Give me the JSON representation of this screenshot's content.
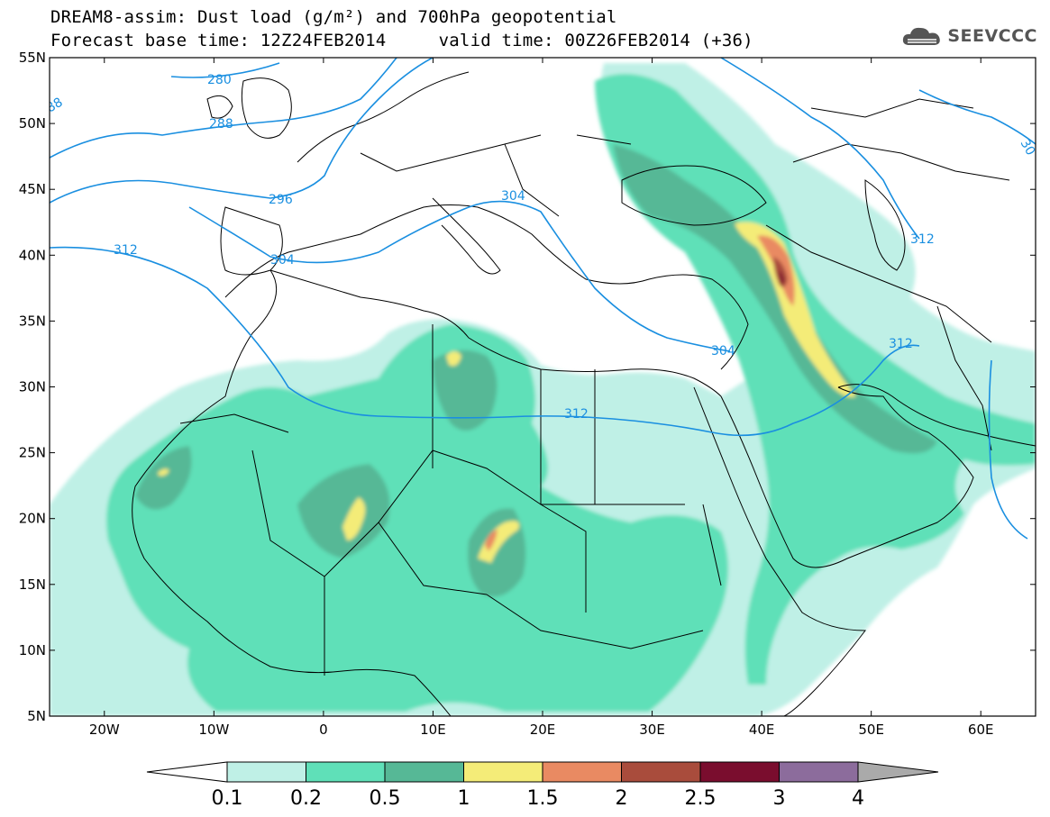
{
  "title": {
    "line1": "DREAM8-assim: Dust load (g/m²) and 700hPa geopotential",
    "line2_left": "Forecast base time: 12Z24FEB2014",
    "line2_right": "valid time: 00Z26FEB2014 (+36)"
  },
  "logo": {
    "text": "SEEVCCC",
    "icon": "cloud-logo-icon"
  },
  "map": {
    "lon_range": [
      -25,
      65
    ],
    "lat_range": [
      5,
      55
    ],
    "lat_ticks": [
      "55N",
      "50N",
      "45N",
      "40N",
      "35N",
      "30N",
      "25N",
      "20N",
      "15N",
      "10N",
      "5N"
    ],
    "lon_ticks": [
      "20W",
      "10W",
      "0",
      "10E",
      "20E",
      "30E",
      "40E",
      "50E",
      "60E"
    ],
    "contour_labels": [
      "280",
      "288",
      "88",
      "296",
      "304",
      "312",
      "304",
      "304",
      "312",
      "312",
      "312",
      "304",
      "30"
    ]
  },
  "colorbar": {
    "labels": [
      "0.1",
      "0.2",
      "0.5",
      "1",
      "1.5",
      "2",
      "2.5",
      "3",
      "4"
    ],
    "colors": [
      "#ffffff",
      "#bff0e6",
      "#5fe0b8",
      "#56b896",
      "#f4ec78",
      "#e98a62",
      "#a94c3c",
      "#7a0d2e",
      "#8c6c9c",
      "#aaaaaa"
    ]
  }
}
